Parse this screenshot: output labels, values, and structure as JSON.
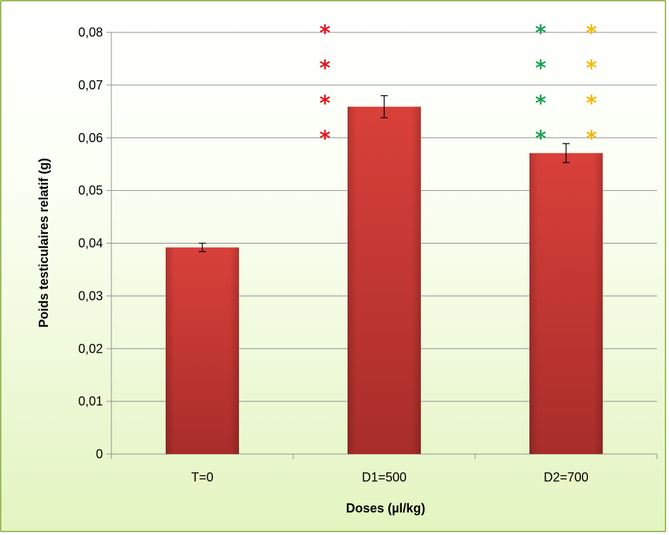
{
  "chart_data": {
    "type": "bar",
    "title": "",
    "xlabel": "Doses (µl/kg)",
    "ylabel": "Poids testiculaires relatif (g)",
    "categories": [
      "T=0",
      "D1=500",
      "D2=700"
    ],
    "values": [
      0.0392,
      0.0659,
      0.0571
    ],
    "errors": [
      0.0008,
      0.0021,
      0.0018
    ],
    "ylim": [
      0,
      0.08
    ],
    "yticks": [
      0,
      0.01,
      0.02,
      0.03,
      0.04,
      0.05,
      0.06,
      0.07,
      0.08
    ],
    "ytick_labels": [
      "0",
      "0,01",
      "0,02",
      "0,03",
      "0,04",
      "0,05",
      "0,06",
      "0,07",
      "0,08"
    ],
    "grid": true,
    "bar_color": "#c0392b",
    "significance_markers": [
      {
        "category": "D1=500",
        "symbol": "*",
        "count": 4,
        "color": "#e8141c"
      },
      {
        "category": "D2=700",
        "symbol": "*",
        "count": 4,
        "color": "#1aa152"
      },
      {
        "category": "D2=700",
        "symbol": "*",
        "count": 4,
        "color": "#f5b80a"
      }
    ]
  }
}
